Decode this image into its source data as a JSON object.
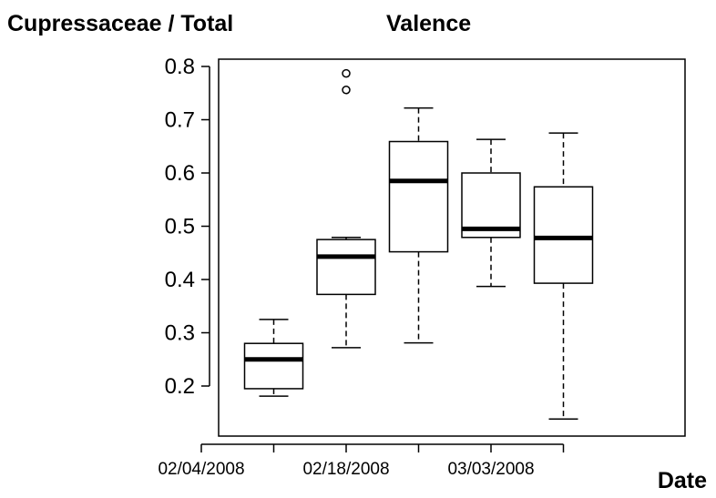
{
  "chart_data": {
    "type": "boxplot",
    "ylabel": "Cupressaceae / Total",
    "title": "Valence",
    "xlabel": "Date",
    "ylim": [
      0.1,
      0.82
    ],
    "yticks": [
      0.2,
      0.3,
      0.4,
      0.5,
      0.6,
      0.7,
      0.8
    ],
    "ytick_labels": [
      "0.2",
      "0.3",
      "0.4",
      "0.5",
      "0.6",
      "0.7",
      "0.8"
    ],
    "xtick_labels": [
      "02/04/2008",
      "",
      "02/18/2008",
      "",
      "03/03/2008",
      ""
    ],
    "boxes": [
      {
        "category_index": 1,
        "whisker_low": 0.181,
        "q1": 0.195,
        "median": 0.25,
        "q3": 0.28,
        "whisker_high": 0.325,
        "outliers": []
      },
      {
        "category_index": 2,
        "whisker_low": 0.272,
        "q1": 0.372,
        "median": 0.443,
        "q3": 0.475,
        "whisker_high": 0.479,
        "outliers": [
          0.756,
          0.787
        ]
      },
      {
        "category_index": 3,
        "whisker_low": 0.281,
        "q1": 0.452,
        "median": 0.585,
        "q3": 0.659,
        "whisker_high": 0.722,
        "outliers": []
      },
      {
        "category_index": 4,
        "whisker_low": 0.387,
        "q1": 0.479,
        "median": 0.495,
        "q3": 0.6,
        "whisker_high": 0.663,
        "outliers": []
      },
      {
        "category_index": 5,
        "whisker_low": 0.138,
        "q1": 0.393,
        "median": 0.478,
        "q3": 0.574,
        "whisker_high": 0.675,
        "outliers": []
      }
    ],
    "grid": false,
    "legend": "none"
  }
}
